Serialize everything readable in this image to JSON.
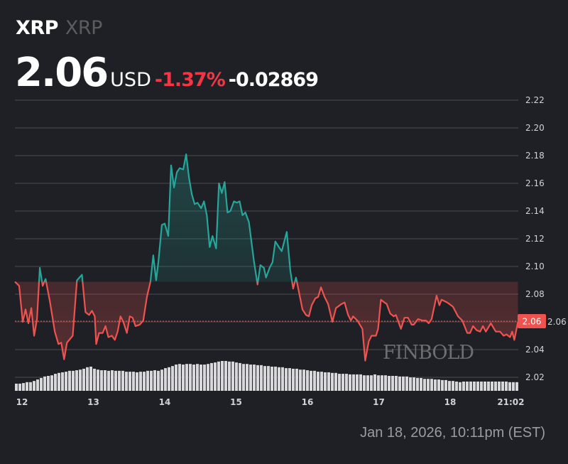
{
  "header": {
    "symbol": "XRP",
    "name": "XRP"
  },
  "quote": {
    "price": "2.06",
    "currency": "USD",
    "change_pct": "-1.37%",
    "change_abs": "-0.02869"
  },
  "timestamp": "Jan 18, 2026, 10:11pm (EST)",
  "watermark": "FINBOLD",
  "colors": {
    "up": "#26a69a",
    "down": "#ef5350",
    "price_tag": "#ef5350",
    "background": "#1e2025"
  },
  "chart_data": {
    "type": "area",
    "xlabel": "",
    "ylabel": "",
    "x_unit": "day of month (January 2026)",
    "ylim": [
      2.01,
      2.22
    ],
    "xlim": [
      11.9,
      18.95
    ],
    "grid": true,
    "y_ticks": [
      "2.02",
      "2.04",
      "2.06",
      "2.08",
      "2.10",
      "2.12",
      "2.14",
      "2.16",
      "2.18",
      "2.20",
      "2.22"
    ],
    "x_ticks": [
      {
        "label": "12",
        "value": 12
      },
      {
        "label": "13",
        "value": 13
      },
      {
        "label": "14",
        "value": 14
      },
      {
        "label": "15",
        "value": 15
      },
      {
        "label": "16",
        "value": 16
      },
      {
        "label": "17",
        "value": 17
      },
      {
        "label": "18",
        "value": 18
      },
      {
        "label": "21:02",
        "value": 18.85
      }
    ],
    "current_price_label": "2.06",
    "current_price": 2.0605,
    "color_split_price": 2.089,
    "price": [
      [
        11.9,
        2.089
      ],
      [
        11.96,
        2.086
      ],
      [
        12.01,
        2.06
      ],
      [
        12.05,
        2.069
      ],
      [
        12.09,
        2.059
      ],
      [
        12.13,
        2.07
      ],
      [
        12.17,
        2.05
      ],
      [
        12.21,
        2.062
      ],
      [
        12.25,
        2.099
      ],
      [
        12.29,
        2.086
      ],
      [
        12.33,
        2.091
      ],
      [
        12.39,
        2.075
      ],
      [
        12.46,
        2.053
      ],
      [
        12.51,
        2.044
      ],
      [
        12.55,
        2.045
      ],
      [
        12.59,
        2.033
      ],
      [
        12.63,
        2.045
      ],
      [
        12.71,
        2.05
      ],
      [
        12.77,
        2.09
      ],
      [
        12.84,
        2.094
      ],
      [
        12.89,
        2.067
      ],
      [
        12.94,
        2.065
      ],
      [
        12.98,
        2.068
      ],
      [
        13.02,
        2.064
      ],
      [
        13.04,
        2.044
      ],
      [
        13.08,
        2.052
      ],
      [
        13.13,
        2.052
      ],
      [
        13.17,
        2.057
      ],
      [
        13.21,
        2.049
      ],
      [
        13.26,
        2.05
      ],
      [
        13.3,
        2.047
      ],
      [
        13.34,
        2.053
      ],
      [
        13.38,
        2.064
      ],
      [
        13.42,
        2.06
      ],
      [
        13.47,
        2.052
      ],
      [
        13.51,
        2.064
      ],
      [
        13.55,
        2.063
      ],
      [
        13.59,
        2.057
      ],
      [
        13.65,
        2.058
      ],
      [
        13.7,
        2.061
      ],
      [
        13.75,
        2.078
      ],
      [
        13.8,
        2.089
      ],
      [
        13.84,
        2.108
      ],
      [
        13.88,
        2.09
      ],
      [
        13.91,
        2.103
      ],
      [
        13.96,
        2.13
      ],
      [
        14.0,
        2.131
      ],
      [
        14.05,
        2.122
      ],
      [
        14.09,
        2.173
      ],
      [
        14.13,
        2.157
      ],
      [
        14.17,
        2.168
      ],
      [
        14.21,
        2.171
      ],
      [
        14.26,
        2.17
      ],
      [
        14.3,
        2.181
      ],
      [
        14.34,
        2.164
      ],
      [
        14.38,
        2.152
      ],
      [
        14.42,
        2.145
      ],
      [
        14.46,
        2.146
      ],
      [
        14.51,
        2.142
      ],
      [
        14.55,
        2.147
      ],
      [
        14.59,
        2.137
      ],
      [
        14.63,
        2.114
      ],
      [
        14.67,
        2.122
      ],
      [
        14.72,
        2.113
      ],
      [
        14.76,
        2.16
      ],
      [
        14.8,
        2.153
      ],
      [
        14.84,
        2.161
      ],
      [
        14.88,
        2.139
      ],
      [
        14.92,
        2.14
      ],
      [
        14.97,
        2.147
      ],
      [
        15.01,
        2.146
      ],
      [
        15.05,
        2.147
      ],
      [
        15.09,
        2.137
      ],
      [
        15.13,
        2.139
      ],
      [
        15.18,
        2.132
      ],
      [
        15.25,
        2.104
      ],
      [
        15.3,
        2.087
      ],
      [
        15.34,
        2.101
      ],
      [
        15.39,
        2.099
      ],
      [
        15.42,
        2.092
      ],
      [
        15.47,
        2.099
      ],
      [
        15.51,
        2.103
      ],
      [
        15.55,
        2.118
      ],
      [
        15.6,
        2.114
      ],
      [
        15.64,
        2.111
      ],
      [
        15.71,
        2.125
      ],
      [
        15.76,
        2.097
      ],
      [
        15.8,
        2.084
      ],
      [
        15.84,
        2.092
      ],
      [
        15.88,
        2.082
      ],
      [
        15.93,
        2.069
      ],
      [
        15.98,
        2.065
      ],
      [
        16.02,
        2.064
      ],
      [
        16.06,
        2.072
      ],
      [
        16.11,
        2.077
      ],
      [
        16.15,
        2.078
      ],
      [
        16.19,
        2.085
      ],
      [
        16.24,
        2.078
      ],
      [
        16.29,
        2.073
      ],
      [
        16.35,
        2.06
      ],
      [
        16.4,
        2.07
      ],
      [
        16.48,
        2.073
      ],
      [
        16.52,
        2.074
      ],
      [
        16.57,
        2.065
      ],
      [
        16.61,
        2.061
      ],
      [
        16.64,
        2.064
      ],
      [
        16.7,
        2.061
      ],
      [
        16.77,
        2.055
      ],
      [
        16.81,
        2.032
      ],
      [
        16.86,
        2.046
      ],
      [
        16.9,
        2.05
      ],
      [
        16.96,
        2.05
      ],
      [
        16.99,
        2.055
      ],
      [
        17.03,
        2.076
      ],
      [
        17.08,
        2.074
      ],
      [
        17.11,
        2.073
      ],
      [
        17.16,
        2.066
      ],
      [
        17.21,
        2.064
      ],
      [
        17.24,
        2.065
      ],
      [
        17.31,
        2.055
      ],
      [
        17.36,
        2.063
      ],
      [
        17.41,
        2.063
      ],
      [
        17.46,
        2.058
      ],
      [
        17.49,
        2.058
      ],
      [
        17.55,
        2.062
      ],
      [
        17.61,
        2.061
      ],
      [
        17.66,
        2.061
      ],
      [
        17.7,
        2.059
      ],
      [
        17.74,
        2.062
      ],
      [
        17.81,
        2.079
      ],
      [
        17.85,
        2.072
      ],
      [
        17.88,
        2.076
      ],
      [
        17.96,
        2.074
      ],
      [
        18.04,
        2.071
      ],
      [
        18.11,
        2.064
      ],
      [
        18.17,
        2.061
      ],
      [
        18.24,
        2.052
      ],
      [
        18.28,
        2.052
      ],
      [
        18.32,
        2.057
      ],
      [
        18.37,
        2.054
      ],
      [
        18.42,
        2.053
      ],
      [
        18.46,
        2.057
      ],
      [
        18.5,
        2.053
      ],
      [
        18.57,
        2.059
      ],
      [
        18.64,
        2.053
      ],
      [
        18.7,
        2.053
      ],
      [
        18.75,
        2.05
      ],
      [
        18.79,
        2.051
      ],
      [
        18.84,
        2.049
      ],
      [
        18.87,
        2.053
      ],
      [
        18.9,
        2.047
      ],
      [
        18.95,
        2.06
      ]
    ],
    "volume_relative_pct": [
      24,
      24,
      26,
      29,
      29,
      33,
      38,
      43,
      48,
      50,
      52,
      57,
      60,
      62,
      64,
      67,
      67,
      69,
      71,
      74,
      79,
      81,
      74,
      71,
      69,
      69,
      67,
      69,
      67,
      67,
      67,
      64,
      64,
      64,
      62,
      64,
      64,
      67,
      67,
      69,
      67,
      71,
      76,
      79,
      83,
      88,
      90,
      88,
      90,
      90,
      88,
      90,
      88,
      88,
      90,
      93,
      95,
      98,
      100,
      100,
      98,
      98,
      95,
      93,
      90,
      90,
      88,
      88,
      86,
      86,
      83,
      83,
      81,
      81,
      79,
      79,
      76,
      76,
      74,
      74,
      71,
      71,
      69,
      67,
      67,
      64,
      64,
      62,
      62,
      60,
      60,
      57,
      57,
      57,
      55,
      55,
      55,
      55,
      52,
      52,
      52,
      55,
      52,
      52,
      52,
      50,
      50,
      50,
      48,
      48,
      48,
      45,
      45,
      43,
      43,
      40,
      40,
      40,
      38,
      38,
      36,
      36,
      33,
      33,
      31,
      29,
      31,
      31,
      31,
      31,
      31,
      31,
      31,
      31,
      31,
      31,
      31,
      31,
      31,
      29,
      29,
      29
    ]
  }
}
